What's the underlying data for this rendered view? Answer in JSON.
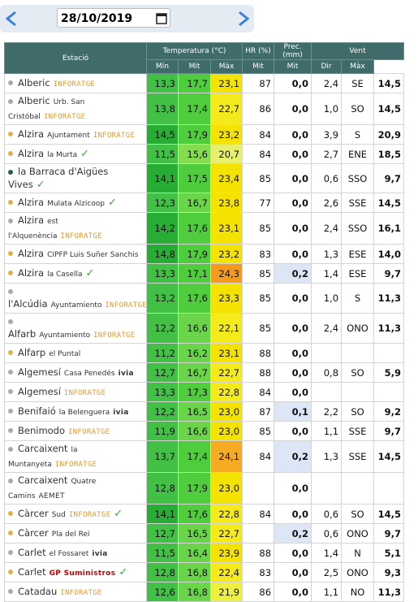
{
  "header": {
    "date": "28/10/2019"
  },
  "table": {
    "group_headers": [
      "Estació",
      "Temperatura (°C)",
      "HR (%)",
      "Prec. (mm)",
      "Vent"
    ],
    "sub_headers": [
      "Mín",
      "Mit",
      "Màx",
      "Mit",
      "Mit",
      "Dir",
      "Màx"
    ],
    "rows": [
      {
        "name": "Alberic",
        "badge": "INFORATGE",
        "dot": "#aaaaaa",
        "values": [
          "13,3",
          "17,7",
          "23,1",
          "87",
          "0,0",
          "2,4",
          "SE",
          "14,5"
        ]
      },
      {
        "name": "Alberic",
        "sub": "Urb. San Cristóbal",
        "badge": "INFORATGE",
        "dot": "#aaaaaa",
        "values": [
          "13,8",
          "17,4",
          "22,7",
          "86",
          "0,0",
          "1,0",
          "SO",
          "14,5"
        ]
      },
      {
        "name": "Alzira",
        "sub": "Ajuntament",
        "badge": "INFORATGE",
        "dot": "#e0b050",
        "values": [
          "14,5",
          "17,9",
          "23,2",
          "84",
          "0,0",
          "3,9",
          "S",
          "20,9"
        ]
      },
      {
        "name": "Alzira",
        "sub": "la Murta",
        "check": "✓",
        "dot": "#e0b050",
        "values": [
          "11,5",
          "15,6",
          "20,7",
          "84",
          "0,0",
          "2,7",
          "ENE",
          "18,5"
        ]
      },
      {
        "name": "la Barraca d'Aigües Vives",
        "check": "✓",
        "dot": "#2a5a5a",
        "values": [
          "14,1",
          "17,5",
          "23,4",
          "85",
          "0,0",
          "0,6",
          "SSO",
          "9,7"
        ]
      },
      {
        "name": "Alzira",
        "sub": "Mulata Alzicoop",
        "check": "✓",
        "dot": "#e0b050",
        "values": [
          "12,3",
          "16,7",
          "23,8",
          "77",
          "0,0",
          "2,6",
          "SSE",
          "14,5"
        ]
      },
      {
        "name": "Alzira",
        "sub": "est l'Alquenència",
        "badge": "INFORATGE",
        "dot": "#aaaaaa",
        "values": [
          "14,2",
          "17,6",
          "23,1",
          "85",
          "0,0",
          "2,4",
          "SSO",
          "16,1"
        ]
      },
      {
        "name": "Alzira",
        "sub": "CIPFP Luis Suñer Sanchis",
        "dot": "#e0b050",
        "values": [
          "14,8",
          "17,9",
          "23,2",
          "83",
          "0,0",
          "1,3",
          "ESE",
          "14,0"
        ]
      },
      {
        "name": "Alzira",
        "sub": "la Casella",
        "check": "✓",
        "dot": "#e0b050",
        "values": [
          "13,3",
          "17,1",
          "24,3",
          "85",
          "0,2",
          "1,4",
          "ESE",
          "9,7"
        ]
      },
      {
        "name": "l'Alcúdia",
        "sub": "Ayuntamiento",
        "badge": "INFORATGE",
        "dot": "#aaaaaa",
        "values": [
          "13,2",
          "17,6",
          "23,3",
          "85",
          "0,0",
          "1,0",
          "S",
          "11,3"
        ]
      },
      {
        "name": "Alfarb",
        "sub": "Ayuntamiento",
        "badge": "INFORATGE",
        "dot": "#aaaaaa",
        "values": [
          "12,2",
          "16,6",
          "22,1",
          "85",
          "0,0",
          "2,4",
          "ONO",
          "11,3"
        ]
      },
      {
        "name": "Alfarp",
        "sub": "el Puntal",
        "dot": "#e0b050",
        "values": [
          "11,2",
          "16,2",
          "23,1",
          "88",
          "0,0",
          null,
          null,
          null
        ]
      },
      {
        "name": "Algemesí",
        "sub": "Casa Penedés",
        "badge": "ivia",
        "dot": "#aaaaaa",
        "values": [
          "12,7",
          "16,7",
          "22,7",
          "88",
          "0,0",
          "0,8",
          "SO",
          "5,9"
        ]
      },
      {
        "name": "Algemesí",
        "badge": "INFORATGE",
        "dot": "#aaaaaa",
        "values": [
          "13,3",
          "17,3",
          "22,8",
          "84",
          "0,0",
          null,
          null,
          null
        ]
      },
      {
        "name": "Benifaió",
        "sub": "la Belenguera",
        "badge": "ivia",
        "dot": "#aaaaaa",
        "values": [
          "12,2",
          "16,5",
          "23,0",
          "87",
          "0,1",
          "2,2",
          "SO",
          "9,2"
        ]
      },
      {
        "name": "Benimodo",
        "badge": "INFORATGE",
        "dot": "#aaaaaa",
        "values": [
          "11,9",
          "16,6",
          "23,0",
          "85",
          "0,0",
          "1,1",
          "SSE",
          "9,7"
        ]
      },
      {
        "name": "Carcaixent",
        "sub": "la Muntanyeta",
        "badge": "INFORATGE",
        "dot": "#aaaaaa",
        "values": [
          "13,7",
          "17,4",
          "24,1",
          "84",
          "0,2",
          "1,3",
          "SSE",
          "14,5"
        ]
      },
      {
        "name": "Carcaixent",
        "sub": "Quatre Camins",
        "badge": "AEMET",
        "dot": "#aaaaaa",
        "values": [
          "12,8",
          "17,9",
          "23,0",
          null,
          "0,0",
          null,
          null,
          null
        ]
      },
      {
        "name": "Càrcer",
        "sub": "Sud",
        "badge": "INFORATGE",
        "check": "✓",
        "dot": "#e0b050",
        "values": [
          "14,1",
          "17,6",
          "22,8",
          "84",
          "0,0",
          "0,6",
          "SO",
          "14,5"
        ]
      },
      {
        "name": "Càrcer",
        "sub": "Pla del Rei",
        "dot": "#e0b050",
        "values": [
          "12,7",
          "16,5",
          "22,7",
          null,
          "0,2",
          "0,6",
          "ONO",
          "9,7"
        ]
      },
      {
        "name": "Carlet",
        "sub": "el Fossaret",
        "badge": "ivia",
        "dot": "#aaaaaa",
        "values": [
          "11,5",
          "16,4",
          "23,9",
          "88",
          "0,0",
          "1,4",
          "N",
          "5,1"
        ]
      },
      {
        "name": "Carlet",
        "badge": "GP Suministros",
        "check": "✓",
        "dot": "#e0b050",
        "values": [
          "12,8",
          "16,8",
          "22,4",
          "83",
          "0,0",
          "2,5",
          "ONO",
          "9,3"
        ]
      },
      {
        "name": "Catadau",
        "badge": "INFORATGE",
        "dot": "#aaaaaa",
        "values": [
          "12,6",
          "16,8",
          "21,9",
          "86",
          "0,0",
          "1,1",
          "NO",
          "11,3"
        ]
      }
    ]
  }
}
